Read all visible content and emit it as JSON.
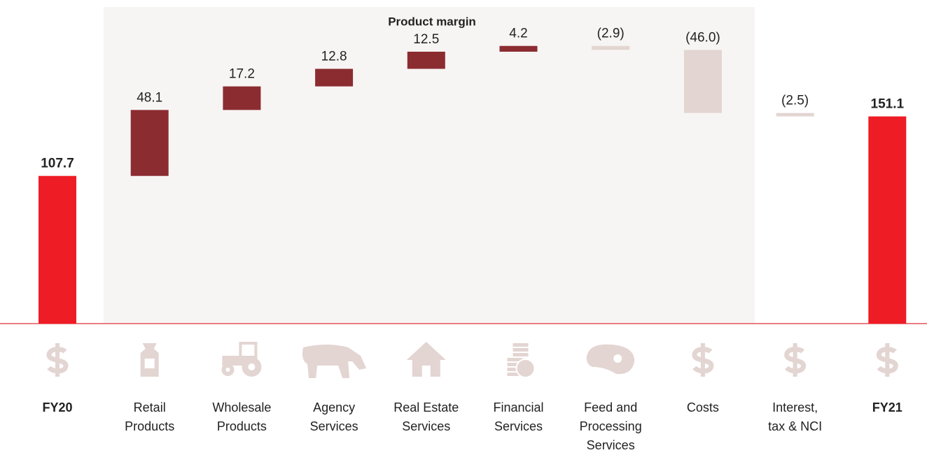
{
  "chart_data": {
    "type": "waterfall",
    "band_label": "Product margin",
    "categories": [
      "FY20",
      "Retail\nProducts",
      "Wholesale\nProducts",
      "Agency\nServices",
      "Real Estate\nServices",
      "Financial\nServices",
      "Feed and\nProcessing\nServices",
      "Costs",
      "Interest,\ntax & NCI",
      "FY21"
    ],
    "values": [
      107.7,
      48.1,
      17.2,
      12.8,
      12.5,
      4.2,
      -2.9,
      -46.0,
      -2.5,
      151.1
    ],
    "value_labels": [
      "107.7",
      "48.1",
      "17.2",
      "12.8",
      "12.5",
      "4.2",
      "(2.9)",
      "(46.0)",
      "(2.5)",
      "151.1"
    ],
    "total_color": "#ee1c25",
    "increase_color": "#8b2c31",
    "decrease_color": "#e3d5d2",
    "ylim": [
      0,
      236
    ]
  }
}
